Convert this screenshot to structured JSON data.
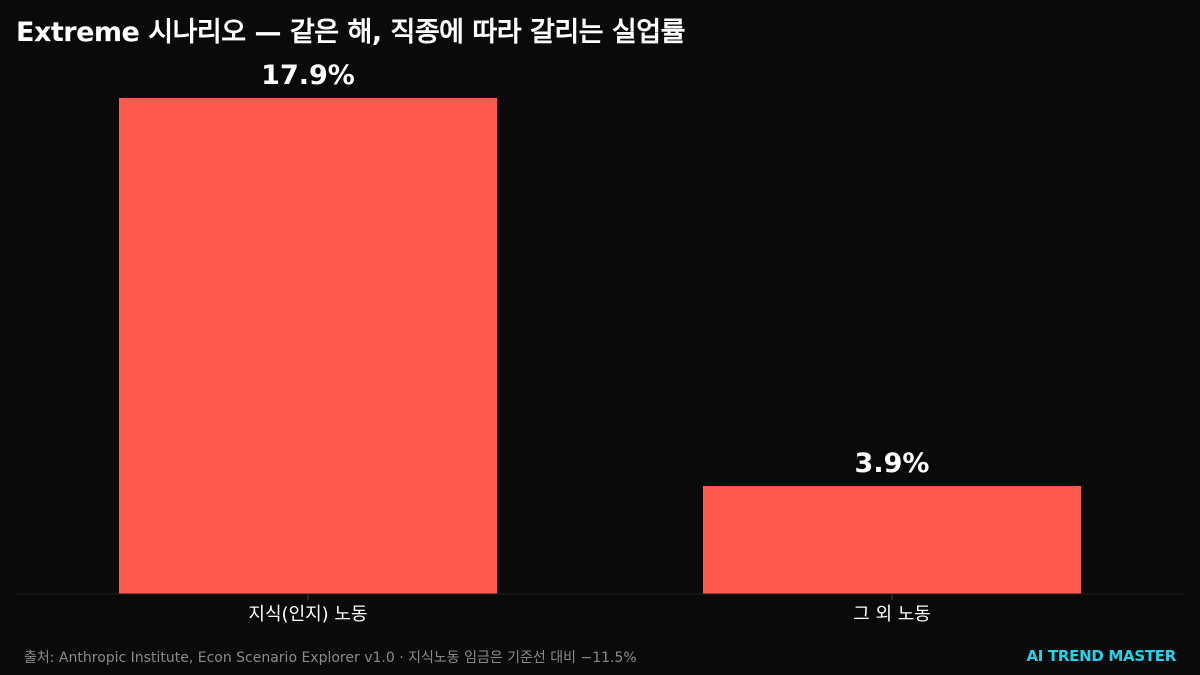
{
  "title": "Extreme 시나리오 — 같은 해, 직종에 따라 갈리는 실업률",
  "source": "출처: Anthropic Institute, Econ Scenario Explorer v1.0 · 지식노동 임금은 기준선 대비 −11.5%",
  "brand": "AI TREND MASTER",
  "colors": {
    "background": "#0a0a0a",
    "bar": "#ff5a4d",
    "text": "#ffffff",
    "brand": "#22d3ee",
    "source": "#8a8a8a"
  },
  "chart_data": {
    "type": "bar",
    "title": "Extreme 시나리오 — 같은 해, 직종에 따라 갈리는 실업률",
    "categories": [
      "지식(인지) 노동",
      "그 외 노동"
    ],
    "values": [
      17.9,
      3.9
    ],
    "data_labels": [
      "17.9%",
      "3.9%"
    ],
    "unit": "%",
    "xlabel": "",
    "ylabel": "",
    "ylim": [
      0,
      17.9
    ],
    "grid": false,
    "legend": "none"
  }
}
